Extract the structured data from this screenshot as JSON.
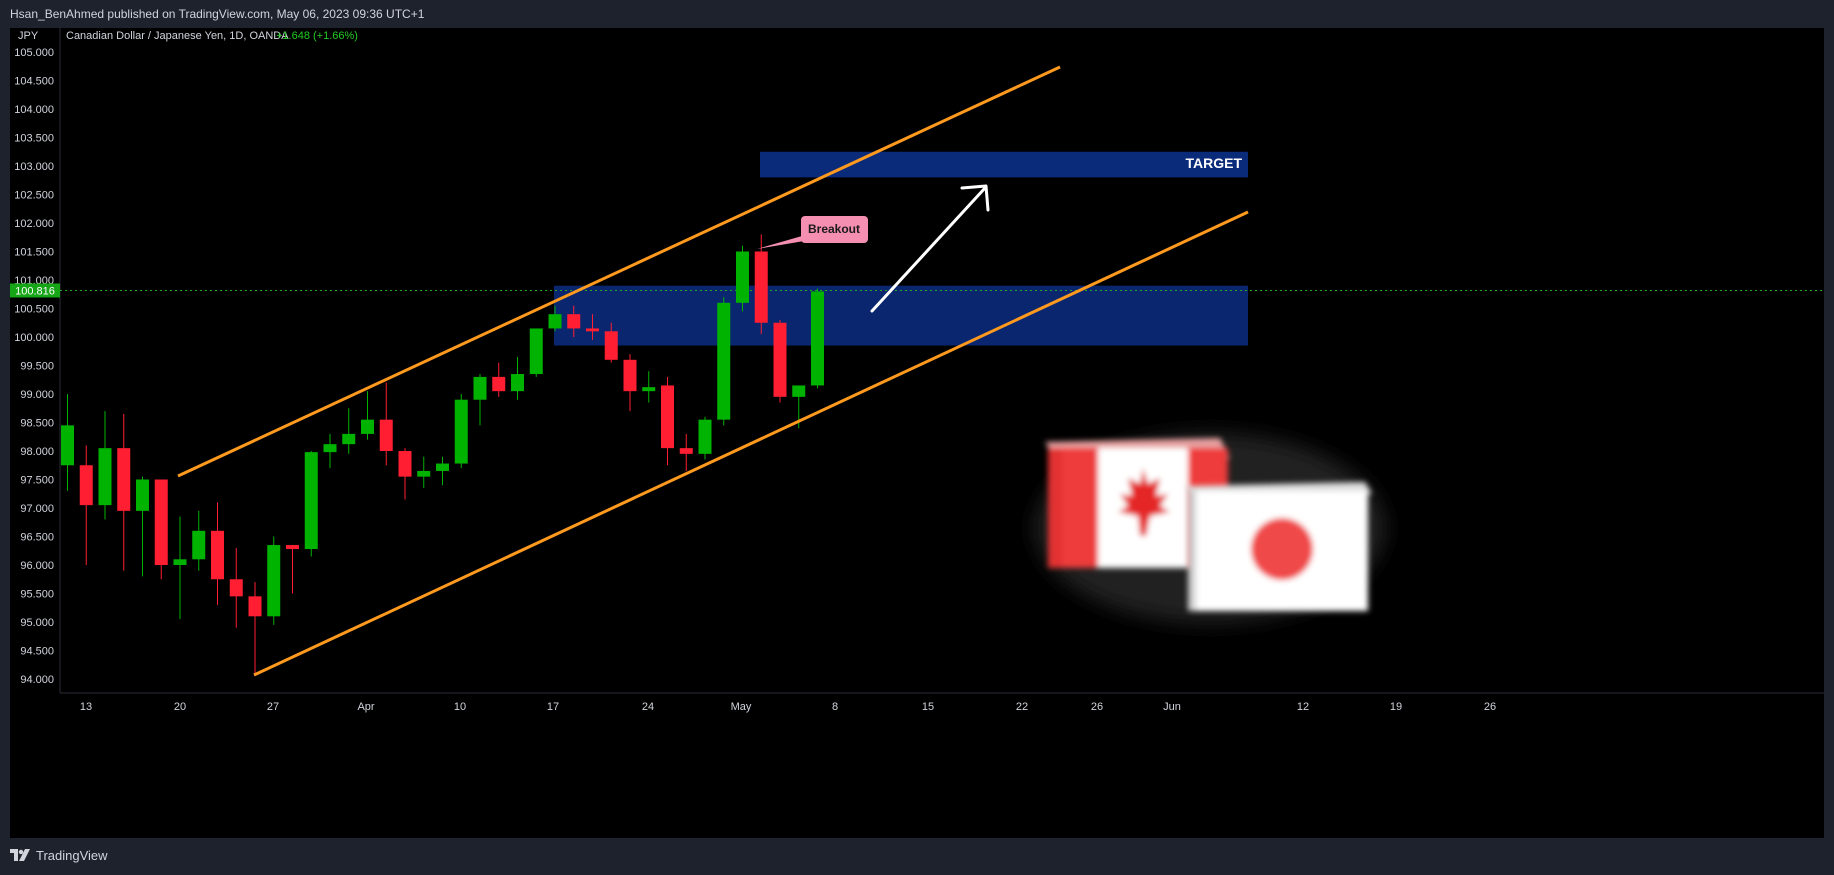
{
  "header": {
    "publisher_text": "Hsan_BenAhmed published on TradingView.com, May 06, 2023 09:36 UTC+1"
  },
  "footer": {
    "brand": "TradingView"
  },
  "colors": {
    "up": "#00b300",
    "down": "#ff1e32",
    "channel": "#ff9a1f",
    "zone": "#0a2a7a",
    "callout": "#f48fb1",
    "background": "#000000"
  },
  "chart_data": {
    "type": "candlestick",
    "symbol_title": "Canadian Dollar / Japanese Yen, 1D, OANDA",
    "change_text": "+1.648 (+1.66%)",
    "y_axis_unit": "JPY",
    "ylim": [
      93.7,
      105.25
    ],
    "y_ticks": [
      "105.000",
      "104.500",
      "104.000",
      "103.500",
      "103.000",
      "102.500",
      "102.000",
      "101.500",
      "101.000",
      "100.500",
      "100.000",
      "99.500",
      "99.000",
      "98.500",
      "98.000",
      "97.500",
      "97.000",
      "96.500",
      "96.000",
      "95.500",
      "95.000",
      "94.500",
      "94.000"
    ],
    "last_price": "100.816",
    "x_ticks": [
      "13",
      "20",
      "27",
      "Apr",
      "10",
      "17",
      "24",
      "May",
      "8",
      "15",
      "22",
      "26",
      "Jun",
      "12",
      "19",
      "26"
    ],
    "candles": [
      {
        "o": 97.75,
        "h": 99.0,
        "l": 97.3,
        "c": 98.45
      },
      {
        "o": 97.75,
        "h": 98.1,
        "l": 96.0,
        "l2": 0,
        "c": 97.05
      },
      {
        "o": 97.05,
        "h": 98.7,
        "l": 96.8,
        "c": 98.05
      },
      {
        "o": 98.05,
        "h": 98.65,
        "l": 95.9,
        "c": 96.95
      },
      {
        "o": 96.95,
        "h": 97.55,
        "l": 95.8,
        "c": 97.5
      },
      {
        "o": 97.5,
        "h": 97.5,
        "l": 95.75,
        "c": 96.0
      },
      {
        "o": 96.0,
        "h": 96.85,
        "l": 95.05,
        "c": 96.1
      },
      {
        "o": 96.1,
        "h": 96.95,
        "l": 95.9,
        "c": 96.6
      },
      {
        "o": 96.6,
        "h": 97.1,
        "l": 95.3,
        "c": 95.75
      },
      {
        "o": 95.75,
        "h": 96.3,
        "l": 94.9,
        "c": 95.45
      },
      {
        "o": 95.45,
        "h": 95.7,
        "l": 94.05,
        "c": 95.1
      },
      {
        "o": 95.1,
        "h": 96.5,
        "l": 94.95,
        "c": 96.35
      },
      {
        "o": 96.35,
        "h": 96.35,
        "l": 95.5,
        "c": 96.28
      },
      {
        "o": 96.28,
        "h": 98.0,
        "l": 96.15,
        "c": 97.98
      },
      {
        "o": 97.98,
        "h": 98.3,
        "l": 97.7,
        "c": 98.12
      },
      {
        "o": 98.12,
        "h": 98.75,
        "l": 97.95,
        "c": 98.3
      },
      {
        "o": 98.3,
        "h": 99.05,
        "l": 98.2,
        "c": 98.55
      },
      {
        "o": 98.55,
        "h": 99.2,
        "l": 97.75,
        "c": 98.0
      },
      {
        "o": 98.0,
        "h": 98.05,
        "l": 97.15,
        "c": 97.55
      },
      {
        "o": 97.55,
        "h": 97.9,
        "l": 97.35,
        "c": 97.65
      },
      {
        "o": 97.65,
        "h": 97.9,
        "l": 97.4,
        "c": 97.78
      },
      {
        "o": 97.78,
        "h": 99.0,
        "l": 97.7,
        "c": 98.9
      },
      {
        "o": 98.9,
        "h": 99.35,
        "l": 98.45,
        "c": 99.3
      },
      {
        "o": 99.3,
        "h": 99.55,
        "l": 98.95,
        "c": 99.05
      },
      {
        "o": 99.05,
        "h": 99.65,
        "l": 98.9,
        "c": 99.35
      },
      {
        "o": 99.35,
        "h": 100.15,
        "l": 99.3,
        "c": 100.15
      },
      {
        "o": 100.15,
        "h": 100.55,
        "l": 100.1,
        "c": 100.4
      },
      {
        "o": 100.4,
        "h": 100.55,
        "l": 100.0,
        "c": 100.15
      },
      {
        "o": 100.15,
        "h": 100.4,
        "l": 99.95,
        "c": 100.1
      },
      {
        "o": 100.1,
        "h": 100.25,
        "l": 99.55,
        "c": 99.6
      },
      {
        "o": 99.6,
        "h": 99.7,
        "l": 98.7,
        "c": 99.05
      },
      {
        "o": 99.05,
        "h": 99.4,
        "l": 98.85,
        "c": 99.12
      },
      {
        "o": 99.15,
        "h": 99.3,
        "l": 97.75,
        "c": 98.05
      },
      {
        "o": 98.05,
        "h": 98.3,
        "l": 97.65,
        "c": 97.95
      },
      {
        "o": 97.95,
        "h": 98.6,
        "l": 97.85,
        "c": 98.55
      },
      {
        "o": 98.55,
        "h": 100.7,
        "l": 98.45,
        "c": 100.6
      },
      {
        "o": 100.6,
        "h": 101.6,
        "l": 100.45,
        "c": 101.5
      },
      {
        "o": 101.5,
        "h": 101.8,
        "l": 100.05,
        "c": 100.25
      },
      {
        "o": 100.25,
        "h": 100.3,
        "l": 98.85,
        "c": 98.95
      },
      {
        "o": 98.95,
        "h": 99.15,
        "l": 98.4,
        "c": 99.15
      },
      {
        "o": 99.15,
        "h": 100.85,
        "l": 99.1,
        "c": 100.8
      }
    ],
    "annotations": {
      "target_label": "TARGET",
      "breakout_label": "Breakout",
      "target_zone": [
        102.8,
        103.25
      ],
      "breakout_zone": [
        99.85,
        100.9
      ]
    }
  }
}
